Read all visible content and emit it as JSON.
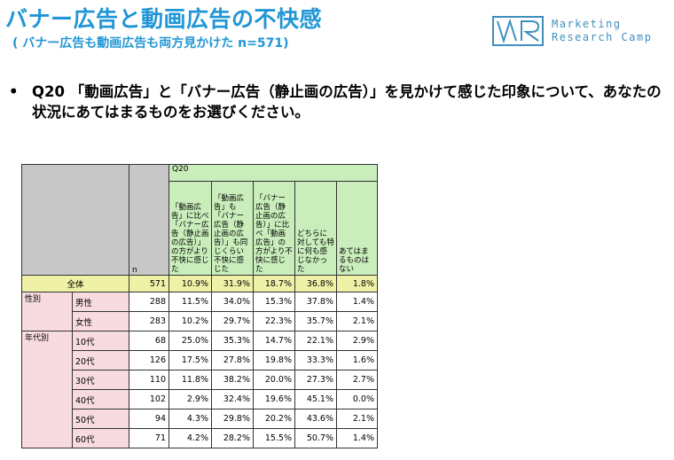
{
  "header": {
    "title": "バナー広告と動画広告の不快感",
    "subtitle": "( バナー広告も動画広告も両方見かけた n=571)"
  },
  "logo": {
    "mark": "MR",
    "line1": "Marketing",
    "line2": "Research Camp"
  },
  "question": {
    "bullet": "•",
    "text": "Q20 「動画広告」と「バナー広告（静止画の広告）」を見かけて感じた印象について、あなたの状況にあてはまるものをお選びください。"
  },
  "table": {
    "question_label": "Q20",
    "n_label": "n",
    "columns": [
      "「動画広告」に比べ「バナー広告（静止画の広告）」の方がより不快に感じた",
      "「動画広告」も「バナー広告（静止画の広告）」も同じくらい不快に感じた",
      "「バナー広告（静止画の広告）」に比べ「動画広告」の方がより不快に感じた",
      "どちらに対しても特に何も感じなかった",
      "あてはまるものはない"
    ],
    "total": {
      "label": "全体",
      "n": "571",
      "values": [
        "10.9%",
        "31.9%",
        "18.7%",
        "36.8%",
        "1.8%"
      ]
    },
    "groups": [
      {
        "label": "性別",
        "rows": [
          {
            "label": "男性",
            "n": "288",
            "values": [
              "11.5%",
              "34.0%",
              "15.3%",
              "37.8%",
              "1.4%"
            ]
          },
          {
            "label": "女性",
            "n": "283",
            "values": [
              "10.2%",
              "29.7%",
              "22.3%",
              "35.7%",
              "2.1%"
            ]
          }
        ]
      },
      {
        "label": "年代別",
        "rows": [
          {
            "label": "10代",
            "n": "68",
            "values": [
              "25.0%",
              "35.3%",
              "14.7%",
              "22.1%",
              "2.9%"
            ]
          },
          {
            "label": "20代",
            "n": "126",
            "values": [
              "17.5%",
              "27.8%",
              "19.8%",
              "33.3%",
              "1.6%"
            ]
          },
          {
            "label": "30代",
            "n": "110",
            "values": [
              "11.8%",
              "38.2%",
              "20.0%",
              "27.3%",
              "2.7%"
            ]
          },
          {
            "label": "40代",
            "n": "102",
            "values": [
              "2.9%",
              "32.4%",
              "19.6%",
              "45.1%",
              "0.0%"
            ]
          },
          {
            "label": "50代",
            "n": "94",
            "values": [
              "4.3%",
              "29.8%",
              "20.2%",
              "43.6%",
              "2.1%"
            ]
          },
          {
            "label": "60代",
            "n": "71",
            "values": [
              "4.2%",
              "28.2%",
              "15.5%",
              "50.7%",
              "1.4%"
            ]
          }
        ]
      }
    ]
  }
}
